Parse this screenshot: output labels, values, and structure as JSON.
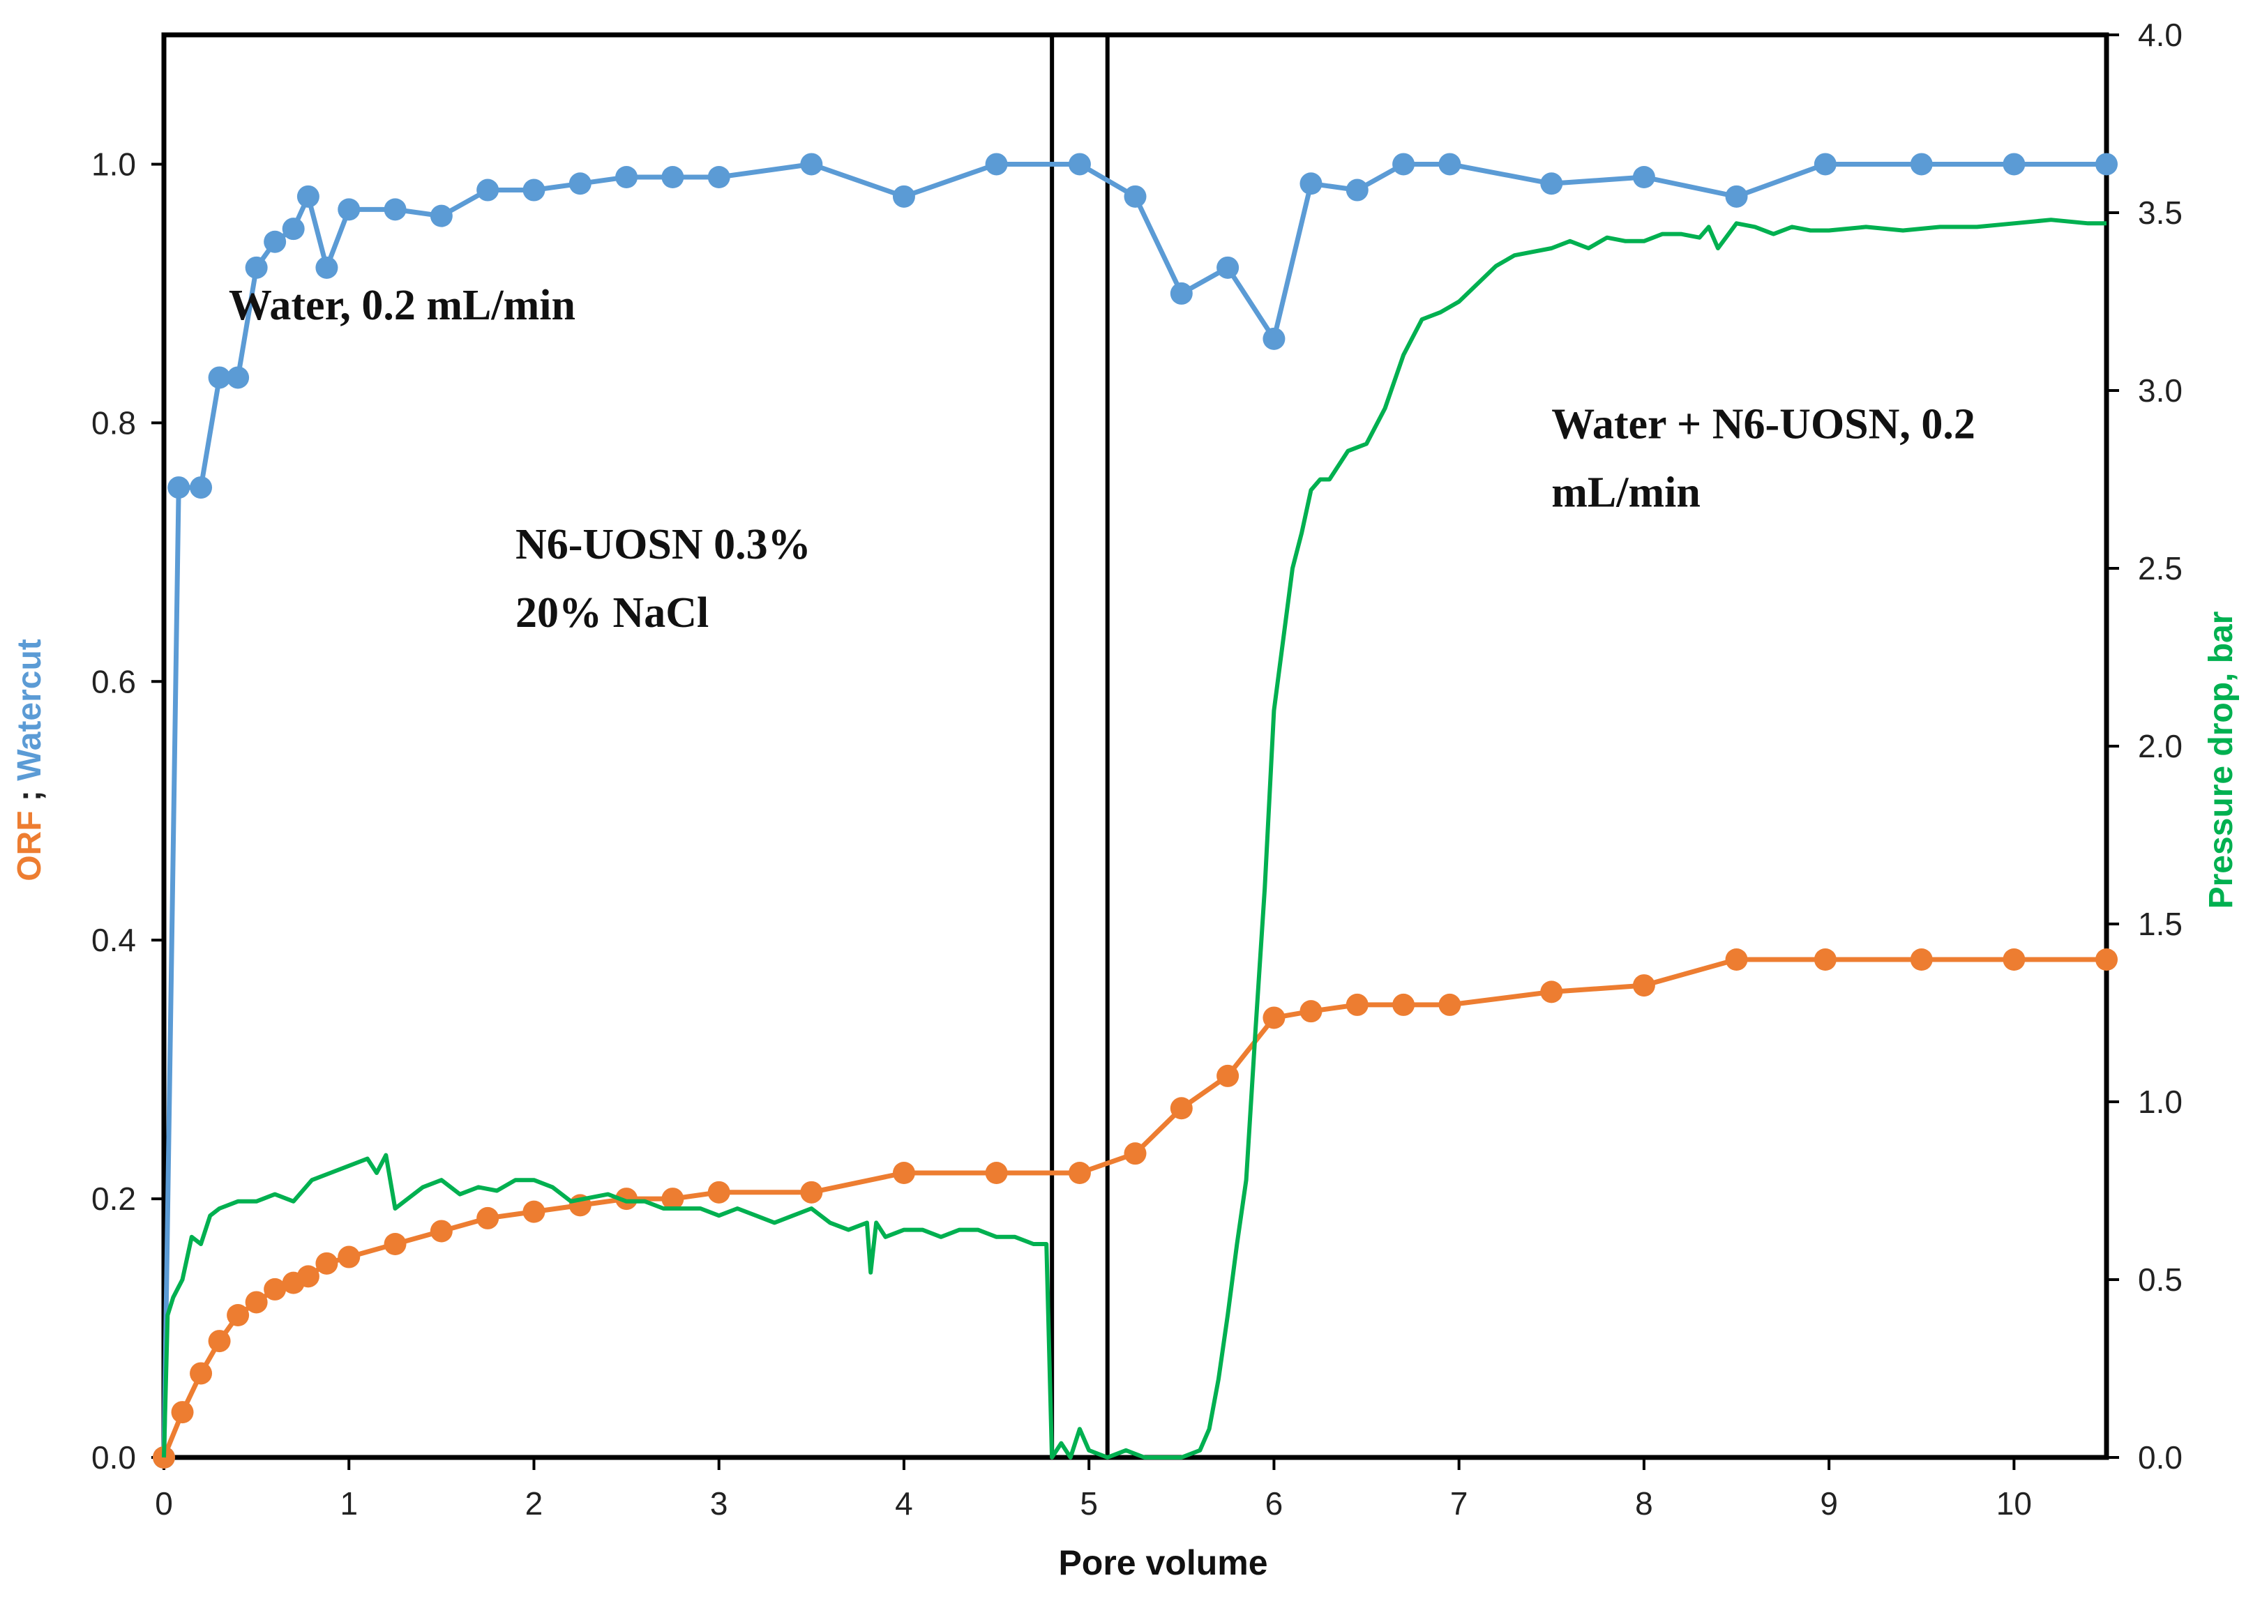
{
  "chart_data": {
    "type": "line",
    "xlabel": "Pore volume",
    "ylabel_left_parts": [
      {
        "text": "ORF",
        "color": "#ed7d31"
      },
      {
        "text": " ; ",
        "color": "#222222"
      },
      {
        "text": "Watercut",
        "color": "#5b9bd5"
      }
    ],
    "ylabel_right": "Pressure drop, bar",
    "xlim": [
      0,
      10.5
    ],
    "ylim_left": [
      0,
      1.1
    ],
    "ylim_right": [
      0,
      4.0
    ],
    "x_ticks": [
      "0",
      "1",
      "2",
      "3",
      "4",
      "5",
      "6",
      "7",
      "8",
      "9",
      "10"
    ],
    "y_left_ticks": [
      "0.0",
      "0.2",
      "0.4",
      "0.6",
      "0.8",
      "1.0"
    ],
    "y_right_ticks": [
      "0.0",
      "0.5",
      "1.0",
      "1.5",
      "2.0",
      "2.5",
      "3.0",
      "3.5",
      "4.0"
    ],
    "vertical_lines_x": [
      4.8,
      5.1
    ],
    "annotations": [
      {
        "lines": [
          "Water, 0.2 mL/min"
        ],
        "x": 0.35,
        "y": 0.88
      },
      {
        "lines": [
          "N6-UOSN 0.3%",
          "20% NaCl"
        ],
        "x": 1.9,
        "y": 0.695
      },
      {
        "lines": [
          "Water + N6-UOSN, 0.2",
          "mL/min"
        ],
        "x": 7.5,
        "y": 0.788
      }
    ],
    "series": [
      {
        "name": "Watercut",
        "color": "#5b9bd5",
        "axis": "left",
        "x": [
          0,
          0.08,
          0.2,
          0.3,
          0.4,
          0.5,
          0.6,
          0.7,
          0.78,
          0.88,
          1.0,
          1.25,
          1.5,
          1.75,
          2.0,
          2.25,
          2.5,
          2.75,
          3.0,
          3.5,
          4.0,
          4.5,
          4.95,
          5.25,
          5.5,
          5.75,
          6.0,
          6.2,
          6.45,
          6.7,
          6.95,
          7.5,
          8.0,
          8.5,
          8.98,
          9.5,
          10.0,
          10.5
        ],
        "y": [
          0.0,
          0.75,
          0.75,
          0.835,
          0.835,
          0.92,
          0.94,
          0.95,
          0.975,
          0.92,
          0.965,
          0.965,
          0.96,
          0.98,
          0.98,
          0.985,
          0.99,
          0.99,
          0.99,
          1.0,
          0.975,
          1.0,
          1.0,
          0.975,
          0.9,
          0.92,
          0.865,
          0.985,
          0.98,
          1.0,
          1.0,
          0.985,
          0.99,
          0.975,
          1.0,
          1.0,
          1.0,
          1.0
        ]
      },
      {
        "name": "ORF",
        "color": "#ed7d31",
        "axis": "left",
        "x": [
          0,
          0.1,
          0.2,
          0.3,
          0.4,
          0.5,
          0.6,
          0.7,
          0.78,
          0.88,
          1.0,
          1.25,
          1.5,
          1.75,
          2.0,
          2.25,
          2.5,
          2.75,
          3.0,
          3.5,
          4.0,
          4.5,
          4.95,
          5.25,
          5.5,
          5.75,
          6.0,
          6.2,
          6.45,
          6.7,
          6.95,
          7.5,
          8.0,
          8.5,
          8.98,
          9.5,
          10.0,
          10.5
        ],
        "y": [
          0.0,
          0.035,
          0.065,
          0.09,
          0.11,
          0.12,
          0.13,
          0.135,
          0.14,
          0.15,
          0.155,
          0.165,
          0.175,
          0.185,
          0.19,
          0.195,
          0.2,
          0.2,
          0.205,
          0.205,
          0.22,
          0.22,
          0.22,
          0.235,
          0.27,
          0.295,
          0.34,
          0.345,
          0.35,
          0.35,
          0.35,
          0.36,
          0.365,
          0.385,
          0.385,
          0.385,
          0.385,
          0.385
        ]
      },
      {
        "name": "Pressure drop",
        "color": "#00b050",
        "axis": "right",
        "x": [
          0,
          0.02,
          0.05,
          0.1,
          0.15,
          0.2,
          0.25,
          0.3,
          0.4,
          0.5,
          0.6,
          0.7,
          0.8,
          0.9,
          1.0,
          1.1,
          1.15,
          1.2,
          1.25,
          1.3,
          1.4,
          1.5,
          1.6,
          1.7,
          1.8,
          1.9,
          2.0,
          2.1,
          2.2,
          2.3,
          2.4,
          2.5,
          2.6,
          2.7,
          2.8,
          2.9,
          3.0,
          3.1,
          3.2,
          3.3,
          3.4,
          3.5,
          3.6,
          3.7,
          3.8,
          3.82,
          3.85,
          3.9,
          4.0,
          4.1,
          4.2,
          4.3,
          4.4,
          4.5,
          4.6,
          4.7,
          4.77,
          4.8,
          4.85,
          4.9,
          4.95,
          5.0,
          5.1,
          5.2,
          5.3,
          5.4,
          5.5,
          5.6,
          5.65,
          5.7,
          5.75,
          5.8,
          5.85,
          5.9,
          5.95,
          6.0,
          6.05,
          6.1,
          6.15,
          6.2,
          6.25,
          6.3,
          6.4,
          6.5,
          6.6,
          6.7,
          6.8,
          6.9,
          7.0,
          7.1,
          7.2,
          7.3,
          7.4,
          7.5,
          7.6,
          7.7,
          7.8,
          7.9,
          8.0,
          8.1,
          8.2,
          8.3,
          8.35,
          8.4,
          8.5,
          8.6,
          8.7,
          8.8,
          8.9,
          9.0,
          9.2,
          9.4,
          9.6,
          9.8,
          10.0,
          10.2,
          10.4,
          10.5
        ],
        "y": [
          0.0,
          0.4,
          0.45,
          0.5,
          0.62,
          0.6,
          0.68,
          0.7,
          0.72,
          0.72,
          0.74,
          0.72,
          0.78,
          0.8,
          0.82,
          0.84,
          0.8,
          0.85,
          0.7,
          0.72,
          0.76,
          0.78,
          0.74,
          0.76,
          0.75,
          0.78,
          0.78,
          0.76,
          0.72,
          0.73,
          0.74,
          0.72,
          0.72,
          0.7,
          0.7,
          0.7,
          0.68,
          0.7,
          0.68,
          0.66,
          0.68,
          0.7,
          0.66,
          0.64,
          0.66,
          0.52,
          0.66,
          0.62,
          0.64,
          0.64,
          0.62,
          0.64,
          0.64,
          0.62,
          0.62,
          0.6,
          0.6,
          0.0,
          0.04,
          0.0,
          0.08,
          0.02,
          0.0,
          0.02,
          0.0,
          0.0,
          0.0,
          0.02,
          0.08,
          0.22,
          0.4,
          0.6,
          0.78,
          1.2,
          1.6,
          2.1,
          2.3,
          2.5,
          2.6,
          2.72,
          2.75,
          2.75,
          2.83,
          2.85,
          2.95,
          3.1,
          3.2,
          3.22,
          3.25,
          3.3,
          3.35,
          3.38,
          3.39,
          3.4,
          3.42,
          3.4,
          3.43,
          3.42,
          3.42,
          3.44,
          3.44,
          3.43,
          3.46,
          3.4,
          3.47,
          3.46,
          3.44,
          3.46,
          3.45,
          3.45,
          3.46,
          3.45,
          3.46,
          3.46,
          3.47,
          3.48,
          3.47,
          3.47
        ]
      }
    ]
  }
}
